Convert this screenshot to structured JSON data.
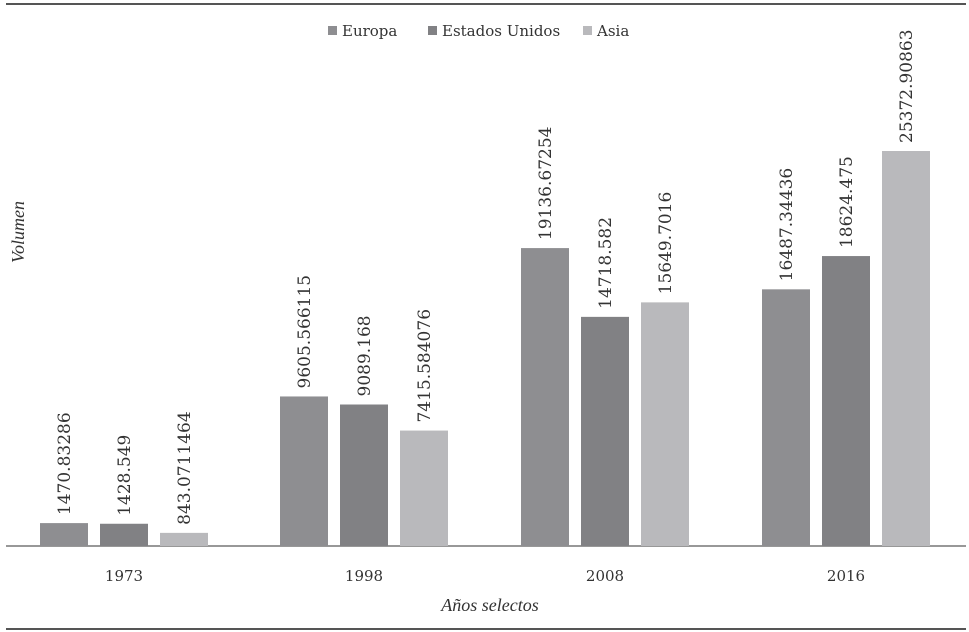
{
  "chart_data": {
    "type": "bar",
    "title": "",
    "xlabel": "Años selectos",
    "ylabel": "Volumen",
    "categories": [
      "1973",
      "1998",
      "2008",
      "2016"
    ],
    "series": [
      {
        "name": "Europa",
        "color": "#8e8e91",
        "values": [
          1470.83286,
          9605.566115,
          19136.67254,
          16487.34436
        ],
        "labels": [
          "1470.83286",
          "9605.566115",
          "19136.67254",
          "16487.34436"
        ]
      },
      {
        "name": "Estados Unidos",
        "color": "#818184",
        "values": [
          1428.549,
          9089.168,
          14718.582,
          18624.475
        ],
        "labels": [
          "1428.549",
          "9089.168",
          "14718.582",
          "18624.475"
        ]
      },
      {
        "name": "Asia",
        "color": "#b9b9bc",
        "values": [
          843.0711464,
          7415.584076,
          15649.7016,
          25372.90863
        ],
        "labels": [
          "843.0711464",
          "7415.584076",
          "15649.7016",
          "25372.90863"
        ]
      }
    ],
    "ylim": [
      0,
      26000
    ],
    "grid": false,
    "legend_position": "top-center",
    "y_axis_ticks_visible": false
  }
}
